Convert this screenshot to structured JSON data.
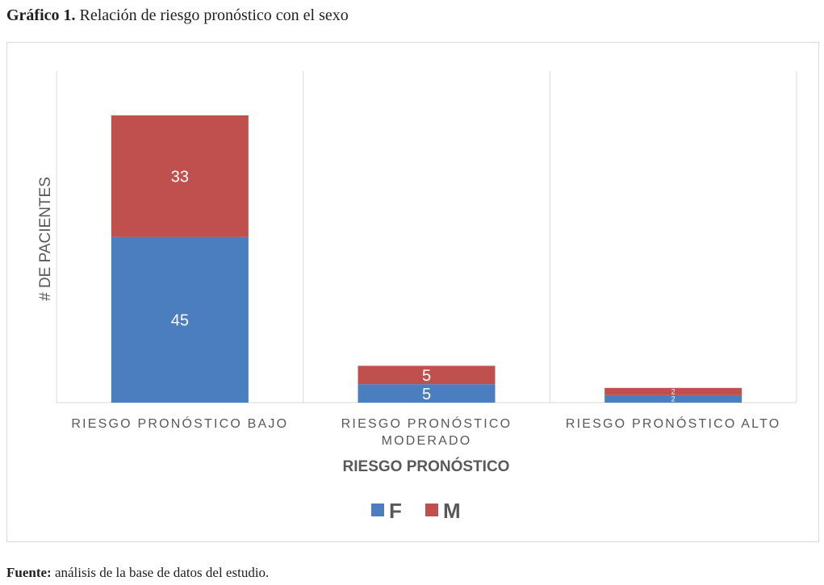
{
  "caption": {
    "prefix": "Gráfico 1.",
    "text": " Relación de riesgo pronóstico con el sexo"
  },
  "source": {
    "prefix": "Fuente:",
    "text": " análisis de la base de datos del estudio."
  },
  "colors": {
    "F": "#4a7ebf",
    "M": "#c0504d",
    "grid": "#d9d9d9",
    "axis_text": "#595959"
  },
  "chart_data": {
    "type": "bar",
    "stacked": true,
    "categories": [
      [
        "RIESGO PRONÓSTICO BAJO"
      ],
      [
        "RIESGO PRONÓSTICO",
        "MODERADO"
      ],
      [
        "RIESGO PRONÓSTICO ALTO"
      ]
    ],
    "series": [
      {
        "name": "F",
        "values": [
          45,
          5,
          2
        ],
        "color": "#4a7ebf"
      },
      {
        "name": "M",
        "values": [
          33,
          5,
          2
        ],
        "color": "#c0504d"
      }
    ],
    "xlabel": "RIESGO PRONÓSTICO",
    "ylabel": "# DE PACIENTES",
    "ylim": [
      0,
      90
    ],
    "legend": "bottom",
    "grid": "vertical-category-separators"
  }
}
